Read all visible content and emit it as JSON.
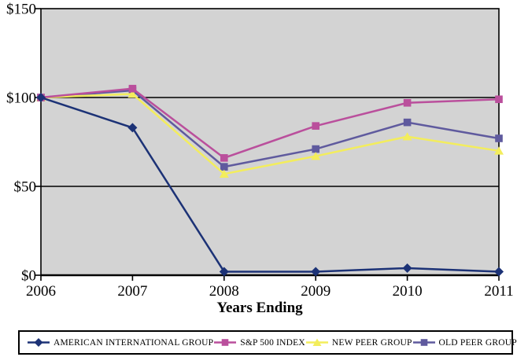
{
  "page": {
    "background": "#ffffff"
  },
  "chart_data": {
    "type": "line",
    "title": "",
    "xlabel": "Years Ending",
    "ylabel": "",
    "categories": [
      "2006",
      "2007",
      "2008",
      "2009",
      "2010",
      "2011"
    ],
    "y_ticks": [
      {
        "value": 0,
        "label": "$0"
      },
      {
        "value": 50,
        "label": "$50"
      },
      {
        "value": 100,
        "label": "$100"
      },
      {
        "value": 150,
        "label": "$150"
      }
    ],
    "ylim": [
      0,
      150
    ],
    "grid": "horizontal-only",
    "plot_background": "#d3d3d3",
    "axis_color": "#000000",
    "legend_position": "bottom-box",
    "series": [
      {
        "name": "AMERICAN INTERNATIONAL GROUP",
        "marker": "diamond",
        "color": "#1c3276",
        "values": [
          100,
          83,
          2,
          2,
          4,
          2
        ]
      },
      {
        "name": "S&P 500 INDEX",
        "marker": "square",
        "color": "#ba4f9c",
        "values": [
          100,
          105,
          66,
          84,
          97,
          99
        ]
      },
      {
        "name": "NEW PEER GROUP",
        "marker": "triangle",
        "color": "#f3ed5c",
        "values": [
          100,
          102,
          57,
          67,
          78,
          70
        ]
      },
      {
        "name": "OLD PEER GROUP",
        "marker": "square",
        "color": "#5f5a9e",
        "values": [
          100,
          104,
          61,
          71,
          86,
          77
        ]
      }
    ]
  }
}
